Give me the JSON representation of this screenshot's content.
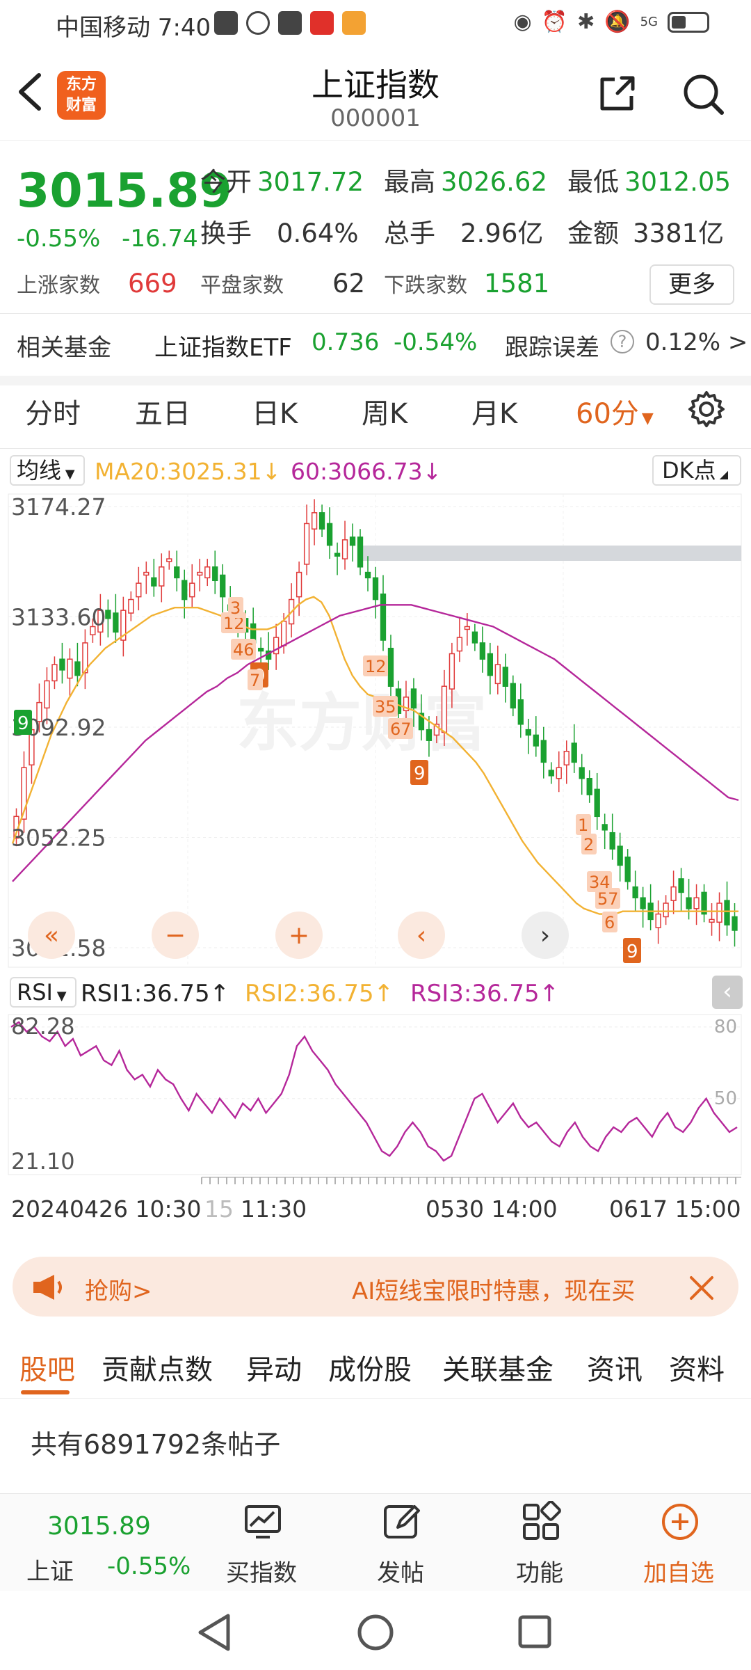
{
  "status_bar": {
    "carrier_time": "中国移动 7:40",
    "network": "5G"
  },
  "header": {
    "back_icon": "chevron-left-icon",
    "logo_text": "东方财富",
    "title": "上证指数",
    "code": "000001"
  },
  "quote": {
    "price": "3015.89",
    "change_pct": "-0.55%",
    "change_val": "-16.74",
    "open_label": "今开",
    "open": "3017.72",
    "high_label": "最高",
    "high": "3026.62",
    "low_label": "最低",
    "low": "3012.05",
    "turnover_label": "换手",
    "turnover": "0.64%",
    "volume_label": "总手",
    "volume": "2.96亿",
    "amount_label": "金额",
    "amount": "3381亿",
    "up_label": "上涨家数",
    "up": "669",
    "flat_label": "平盘家数",
    "flat": "62",
    "down_label": "下跌家数",
    "down": "1581",
    "more": "更多"
  },
  "fund": {
    "label": "相关基金",
    "name": "上证指数ETF",
    "price": "0.736",
    "pct": "-0.54%",
    "track_label": "跟踪误差",
    "track_value": "0.12% >"
  },
  "tabs": [
    {
      "label": "分时"
    },
    {
      "label": "五日"
    },
    {
      "label": "日K"
    },
    {
      "label": "周K"
    },
    {
      "label": "月K"
    },
    {
      "label": "60分"
    }
  ],
  "ma_line": {
    "select": "均线",
    "ma20": "MA20:3025.31",
    "ma20_arrow": "↓",
    "ma60": "60:3066.73",
    "ma60_arrow": "↓",
    "dk": "DK点"
  },
  "rsi_line": {
    "select": "RSI",
    "rsi1": "RSI1:36.75",
    "rsi2": "RSI2:36.75",
    "rsi3": "RSI3:36.75",
    "arrow": "↑"
  },
  "time_axis": {
    "t1": "20240426 10:30",
    "t1b": "15",
    "t2": "11:30",
    "t3": "0530 14:00",
    "t4": "0617 15:00"
  },
  "chart_data": {
    "type": "candlestick",
    "price_axis_labels": [
      "3174.27",
      "3133.60",
      "3092.92",
      "3052.25",
      "3011.58"
    ],
    "ylim": [
      3011.58,
      3174.27
    ],
    "watermark": "东方财富",
    "closes": [
      3060,
      3078,
      3092,
      3102,
      3110,
      3116,
      3114,
      3118,
      3112,
      3124,
      3130,
      3136,
      3133,
      3128,
      3136,
      3140,
      3146,
      3150,
      3145,
      3152,
      3155,
      3148,
      3140,
      3146,
      3150,
      3152,
      3147,
      3141,
      3136,
      3132,
      3128,
      3124,
      3121,
      3118,
      3126,
      3132,
      3140,
      3150,
      3168,
      3172,
      3166,
      3160,
      3156,
      3162,
      3160,
      3152,
      3148,
      3140,
      3125,
      3108,
      3098,
      3104,
      3100,
      3092,
      3088,
      3094,
      3108,
      3120,
      3126,
      3130,
      3124,
      3118,
      3112,
      3116,
      3108,
      3100,
      3094,
      3090,
      3086,
      3080,
      3075,
      3078,
      3084,
      3080,
      3074,
      3068,
      3060,
      3055,
      3048,
      3042,
      3036,
      3030,
      3026,
      3022,
      3024,
      3028,
      3034,
      3032,
      3026,
      3030,
      3024,
      3022,
      3028,
      3020,
      3018
    ],
    "ma20": [
      3050,
      3058,
      3066,
      3074,
      3082,
      3090,
      3096,
      3102,
      3107,
      3112,
      3116,
      3119,
      3122,
      3124,
      3126,
      3128,
      3130,
      3132,
      3134,
      3135,
      3136,
      3137,
      3137,
      3137,
      3137,
      3136,
      3135,
      3134,
      3132,
      3131,
      3130,
      3129,
      3129,
      3129,
      3130,
      3132,
      3135,
      3138,
      3140,
      3141,
      3139,
      3134,
      3126,
      3118,
      3112,
      3108,
      3105,
      3104,
      3103,
      3102,
      3101,
      3100,
      3099,
      3097,
      3095,
      3093,
      3091,
      3089,
      3086,
      3083,
      3080,
      3076,
      3071,
      3066,
      3061,
      3056,
      3051,
      3047,
      3043,
      3040,
      3037,
      3034,
      3031,
      3028,
      3026,
      3025,
      3024,
      3024,
      3024,
      3025,
      3025,
      3025,
      3025,
      3025,
      3025,
      3025,
      3025,
      3025,
      3025,
      3025,
      3025,
      3025,
      3025,
      3025,
      3025
    ],
    "ma60": [
      3036,
      3040,
      3044,
      3048,
      3052,
      3056,
      3060,
      3064,
      3068,
      3072,
      3076,
      3080,
      3084,
      3088,
      3091,
      3094,
      3097,
      3100,
      3103,
      3106,
      3108,
      3111,
      3113,
      3116,
      3118,
      3120,
      3122,
      3124,
      3126,
      3128,
      3130,
      3132,
      3134,
      3135,
      3136,
      3137,
      3138,
      3138,
      3138,
      3138,
      3137,
      3136,
      3135,
      3134,
      3133,
      3132,
      3131,
      3130,
      3128,
      3126,
      3124,
      3122,
      3120,
      3118,
      3115,
      3112,
      3109,
      3106,
      3103,
      3100,
      3097,
      3094,
      3091,
      3088,
      3085,
      3082,
      3079,
      3076,
      3073,
      3070,
      3067,
      3066
    ]
  },
  "rsi_data": {
    "axis_labels": [
      "82.28",
      "21.10"
    ],
    "right_labels": [
      "80",
      "50"
    ],
    "values": [
      80,
      82,
      78,
      80,
      76,
      74,
      78,
      72,
      75,
      68,
      70,
      72,
      66,
      64,
      70,
      62,
      58,
      60,
      55,
      62,
      58,
      56,
      50,
      45,
      52,
      48,
      44,
      50,
      46,
      42,
      48,
      45,
      50,
      44,
      48,
      52,
      60,
      72,
      76,
      70,
      66,
      62,
      56,
      52,
      48,
      44,
      40,
      34,
      28,
      26,
      30,
      36,
      40,
      36,
      30,
      28,
      24,
      26,
      34,
      42,
      50,
      52,
      46,
      40,
      44,
      48,
      42,
      38,
      40,
      36,
      32,
      30,
      36,
      40,
      34,
      30,
      28,
      34,
      38,
      36,
      40,
      42,
      38,
      34,
      40,
      44,
      38,
      36,
      40,
      46,
      50,
      44,
      40,
      36,
      38
    ]
  },
  "ad": {
    "left": "抢购>",
    "right": "AI短线宝限时特惠，现在买"
  },
  "section_tabs": [
    "股吧",
    "贡献点数",
    "异动",
    "成份股",
    "关联基金",
    "资讯",
    "资料"
  ],
  "posts": "共有6891792条帖子",
  "bottom": {
    "index_price": "3015.89",
    "index_name": "上证",
    "index_pct": "-0.55%",
    "buy": "买指数",
    "post": "发帖",
    "func": "功能",
    "add": "加自选"
  }
}
